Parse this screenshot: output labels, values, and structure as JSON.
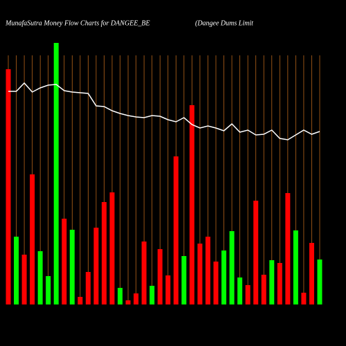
{
  "chart_data": {
    "type": "bar",
    "title": "MunafaSutra  Money Flow  Charts for DANGEE_BE",
    "subtitle": "(Dangee    Dums Limit",
    "values": [
      340,
      98,
      72,
      188,
      77,
      41,
      378,
      124,
      108,
      11,
      47,
      111,
      148,
      162,
      24,
      6,
      16,
      91,
      27,
      80,
      42,
      214,
      70,
      288,
      88,
      98,
      62,
      78,
      106,
      39,
      28,
      150,
      43,
      64,
      60,
      161,
      107,
      17,
      89,
      65
    ],
    "colors": [
      "#ff0000",
      "#00ff00",
      "#ff0000",
      "#ff0000",
      "#00ff00",
      "#00ff00",
      "#00ff00",
      "#ff0000",
      "#00ff00",
      "#ff0000",
      "#ff0000",
      "#ff0000",
      "#ff0000",
      "#ff0000",
      "#00ff00",
      "#ff0000",
      "#ff0000",
      "#ff0000",
      "#00ff00",
      "#ff0000",
      "#ff0000",
      "#ff0000",
      "#00ff00",
      "#ff0000",
      "#ff0000",
      "#ff0000",
      "#ff0000",
      "#00ff00",
      "#00ff00",
      "#00ff00",
      "#ff0000",
      "#ff0000",
      "#ff0000",
      "#00ff00",
      "#ff0000",
      "#ff0000",
      "#00ff00",
      "#ff0000",
      "#ff0000",
      "#00ff00"
    ],
    "line": {
      "color": "#ffffff",
      "values": [
        308,
        308,
        320,
        307,
        313,
        317,
        318,
        309,
        307,
        306,
        305,
        287,
        286,
        280,
        276,
        273,
        271,
        270,
        273,
        272,
        267,
        264,
        270,
        260,
        255,
        258,
        255,
        251,
        261,
        249,
        252,
        245,
        246,
        252,
        240,
        238,
        245,
        252,
        246,
        250
      ]
    },
    "ylim": [
      0,
      440
    ],
    "grid": true,
    "grid_color": "#b8651b"
  }
}
